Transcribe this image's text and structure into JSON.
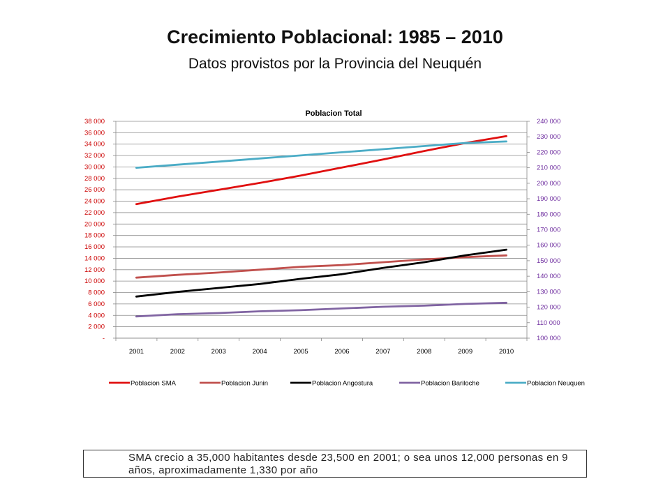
{
  "slide": {
    "title": "Crecimiento Poblacional: 1985 – 2010",
    "subtitle": "Datos provistos por la Provincia del Neuquén",
    "note": "SMA crecio a 35,000 habitantes desde 23,500 en 2001; o sea unos 12,000 personas en 9 años, aproximadamente 1,330 por año"
  },
  "chart_data": {
    "type": "line",
    "title": "Poblacion Total",
    "xlabel": "",
    "ylabel": "",
    "categories": [
      "2001",
      "2002",
      "2003",
      "2004",
      "2005",
      "2006",
      "2007",
      "2008",
      "2009",
      "2010"
    ],
    "y_left": {
      "min": 0,
      "max": 38000,
      "step": 2000,
      "tick_labels": [
        "-",
        "2 000",
        "4 000",
        "6 000",
        "8 000",
        "10 000",
        "12 000",
        "14 000",
        "16 000",
        "18 000",
        "20 000",
        "22 000",
        "24 000",
        "26 000",
        "28 000",
        "30 000",
        "32 000",
        "34 000",
        "36 000",
        "38 000"
      ],
      "color": "#cc0000"
    },
    "y_right": {
      "min": 100000,
      "max": 240000,
      "step": 10000,
      "tick_labels": [
        "100 000",
        "110 000",
        "120 000",
        "130 000",
        "140 000",
        "150 000",
        "160 000",
        "170 000",
        "180 000",
        "190 000",
        "200 000",
        "210 000",
        "220 000",
        "230 000",
        "240 000"
      ],
      "color": "#7030a0"
    },
    "grid": true,
    "legend_position": "bottom",
    "series": [
      {
        "name": "Poblacion SMA",
        "axis": "left",
        "color": "#e01010",
        "values": [
          23500,
          24800,
          26000,
          27200,
          28500,
          29900,
          31300,
          32800,
          34200,
          35400
        ]
      },
      {
        "name": "Poblacion Junin",
        "axis": "left",
        "color": "#c0504d",
        "values": [
          10600,
          11100,
          11500,
          12000,
          12500,
          12800,
          13300,
          13800,
          14200,
          14500
        ]
      },
      {
        "name": "Poblacion Angostura",
        "axis": "left",
        "color": "#000000",
        "values": [
          7300,
          8100,
          8800,
          9500,
          10400,
          11200,
          12300,
          13300,
          14500,
          15500
        ]
      },
      {
        "name": "Poblacion Bariloche",
        "axis": "left",
        "color": "#8064a2",
        "values": [
          3800,
          4200,
          4400,
          4700,
          4900,
          5200,
          5500,
          5700,
          6000,
          6200
        ]
      },
      {
        "name": "Poblacion Neuquen",
        "axis": "right",
        "color": "#4bacc6",
        "values": [
          210000,
          212000,
          214000,
          216000,
          218000,
          220000,
          222000,
          224000,
          226000,
          227000
        ]
      }
    ]
  }
}
